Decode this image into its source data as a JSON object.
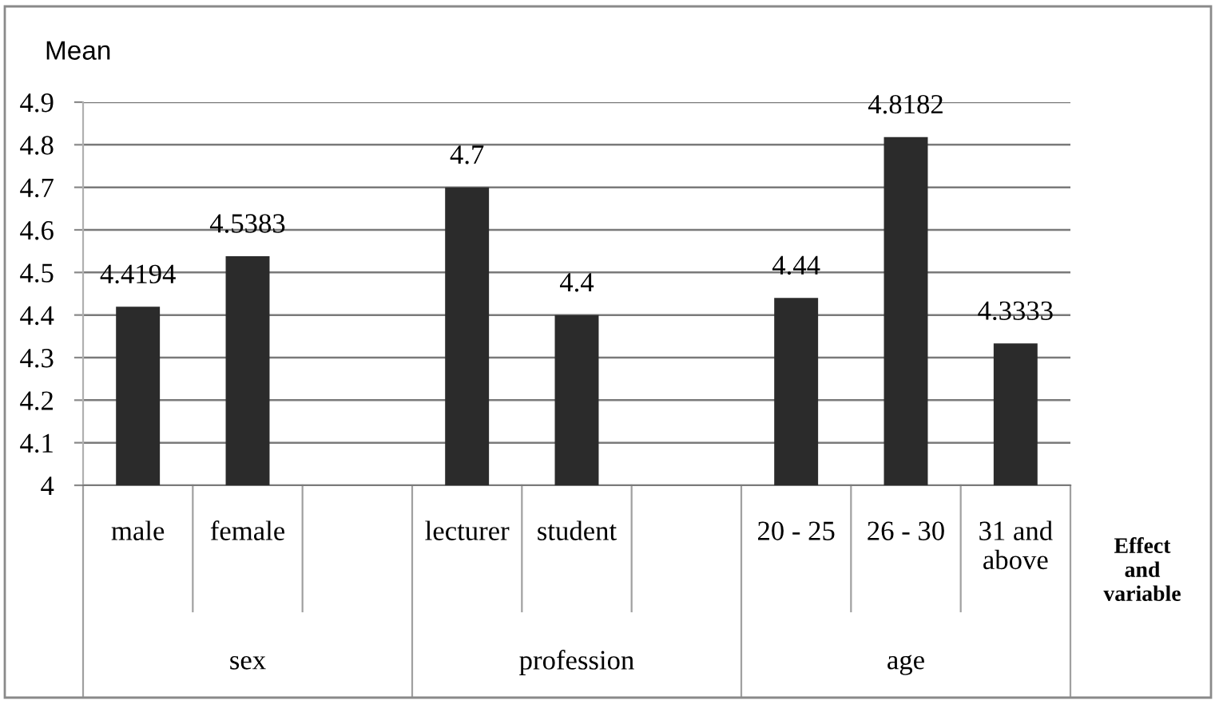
{
  "chart_data": {
    "type": "bar",
    "ylabel": "Mean",
    "xlabel": "Effect and variable",
    "categories": [
      "male",
      "female",
      null,
      "lecturer",
      "student",
      null,
      "20 - 25",
      "26 - 30",
      "31 and above"
    ],
    "values": [
      4.4194,
      4.5383,
      null,
      4.7,
      4.4,
      null,
      4.44,
      4.8182,
      4.3333
    ],
    "color": "#2b2b2b",
    "ylim": [
      4,
      4.9
    ],
    "yticks": [
      4,
      4.1,
      4.2,
      4.3,
      4.4,
      4.5,
      4.6,
      4.7,
      4.8,
      4.9
    ],
    "grid": "y",
    "data_labels": true,
    "annotations": [
      "sex",
      "profession",
      "age"
    ]
  }
}
